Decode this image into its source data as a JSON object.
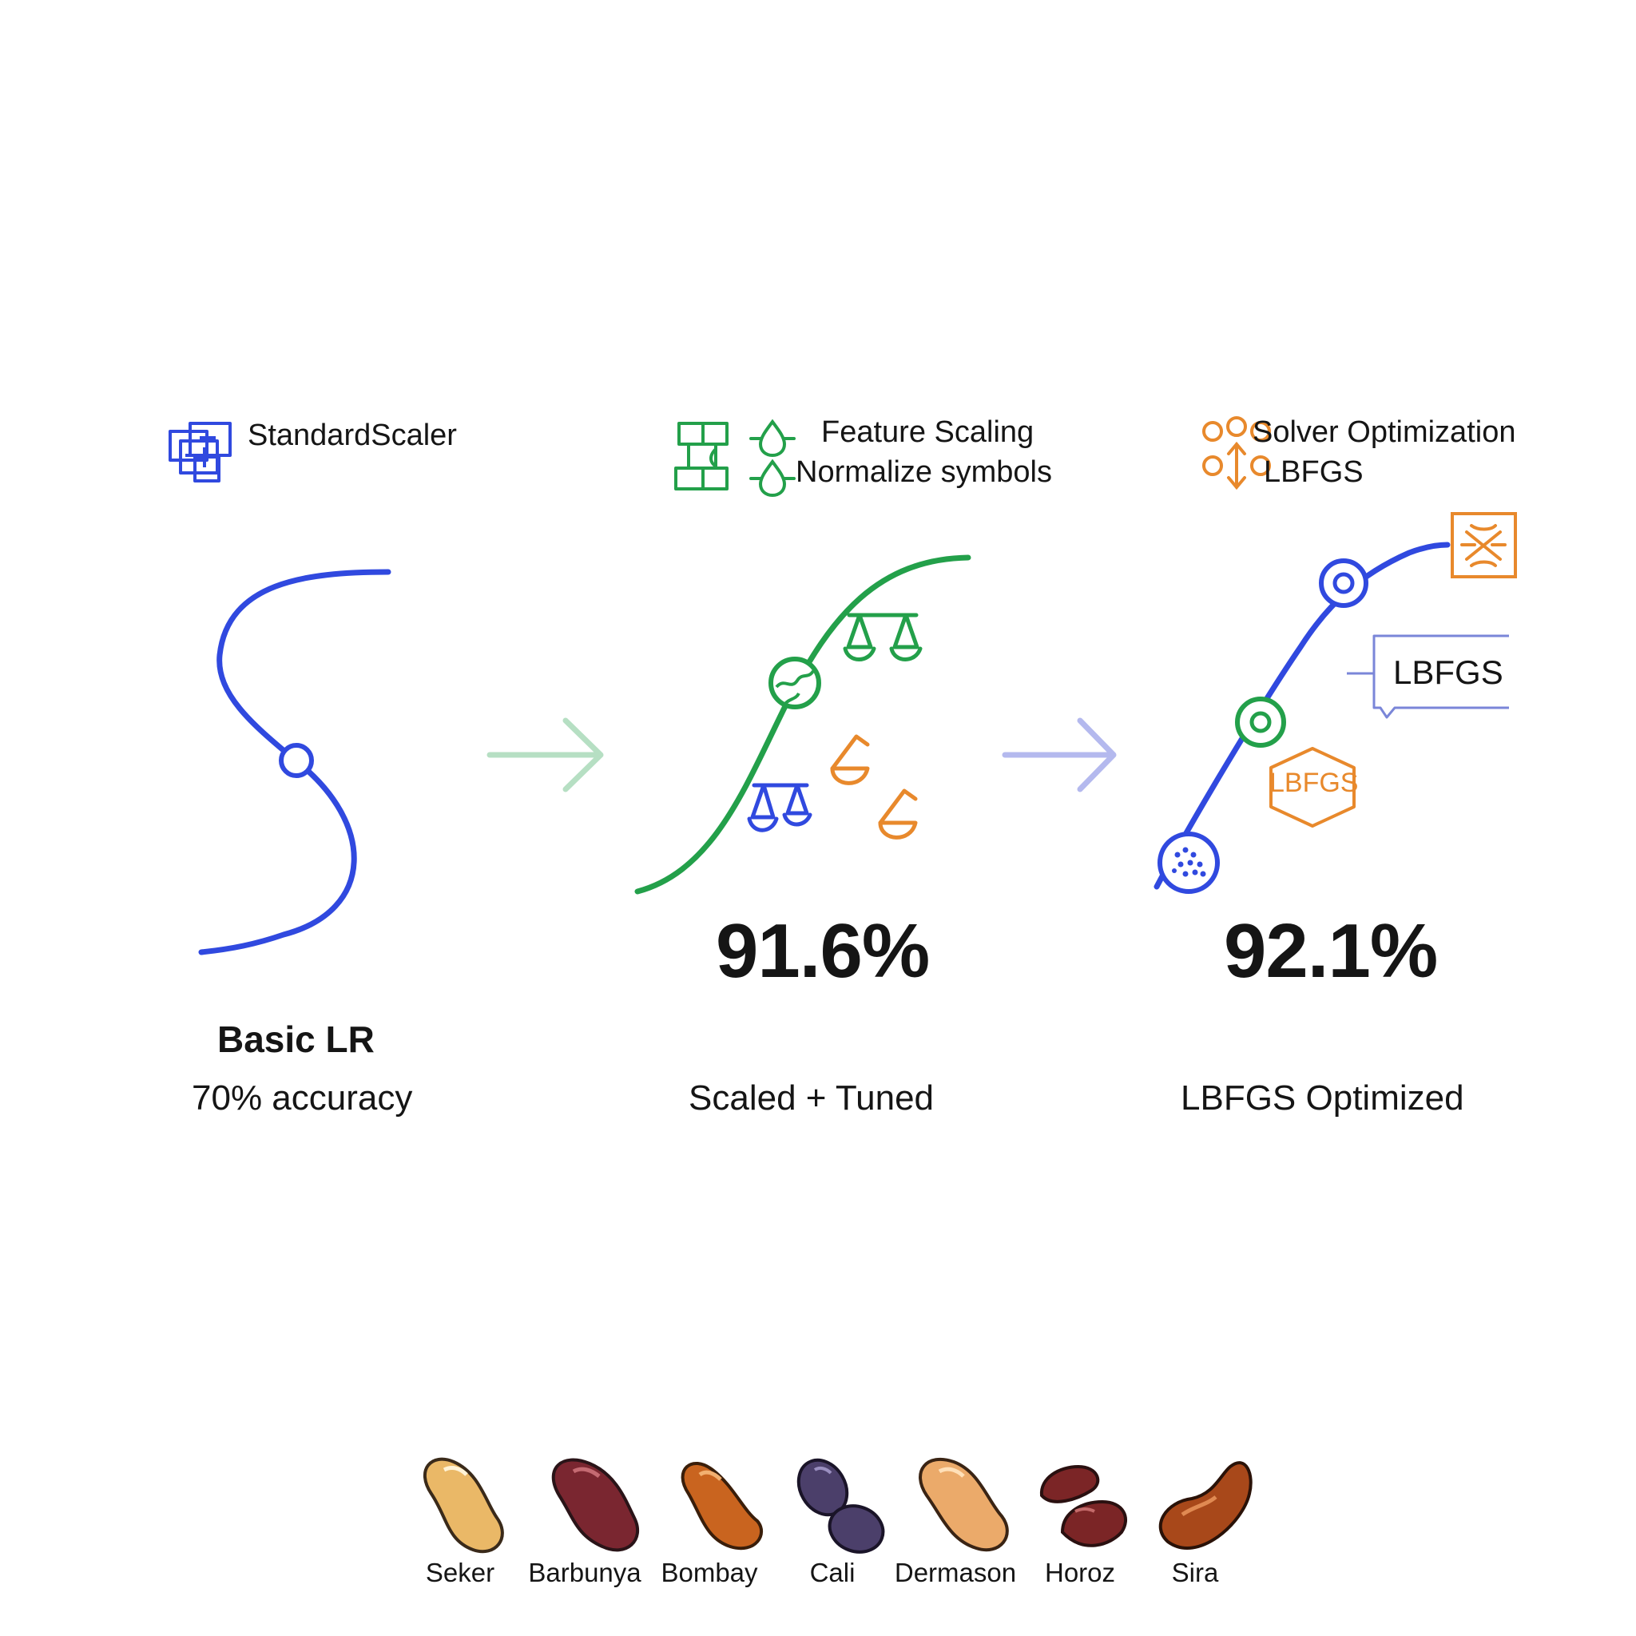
{
  "colors": {
    "blue": "#3049df",
    "green": "#23a04a",
    "orange": "#e8892c",
    "arrow_green": "#b6dfc3",
    "arrow_blue": "#b4b9ee"
  },
  "stage1": {
    "header_icon": "stacked-grid-icon",
    "header": "StandardScaler",
    "title": "Basic LR",
    "subtitle": "70% accuracy"
  },
  "stage2": {
    "header_icon": "puzzle-grid-icon",
    "header_line1": "Feature Scaling",
    "header_line2": "Normalize symbols",
    "metric": "91.6%",
    "subtitle": "Scaled + Tuned"
  },
  "stage3": {
    "header_icon": "solver-nodes-icon",
    "header_line1": "Solver Optimization",
    "header_line2": "LBFGS",
    "callout_label": "LBFGS",
    "hex_label": "LBFGS",
    "metric": "92.1%",
    "subtitle": "LBFGS Optimized"
  },
  "beans": [
    {
      "label": "Seker",
      "color": "#eab867"
    },
    {
      "label": "Barbunya",
      "color": "#7a2630"
    },
    {
      "label": "Bombay",
      "color": "#c9641f"
    },
    {
      "label": "Cali",
      "color": "#4b3f6a"
    },
    {
      "label": "Dermason",
      "color": "#ebaa6a"
    },
    {
      "label": "Horoz",
      "color": "#7b2526"
    },
    {
      "label": "Sira",
      "color": "#a8481a"
    }
  ]
}
